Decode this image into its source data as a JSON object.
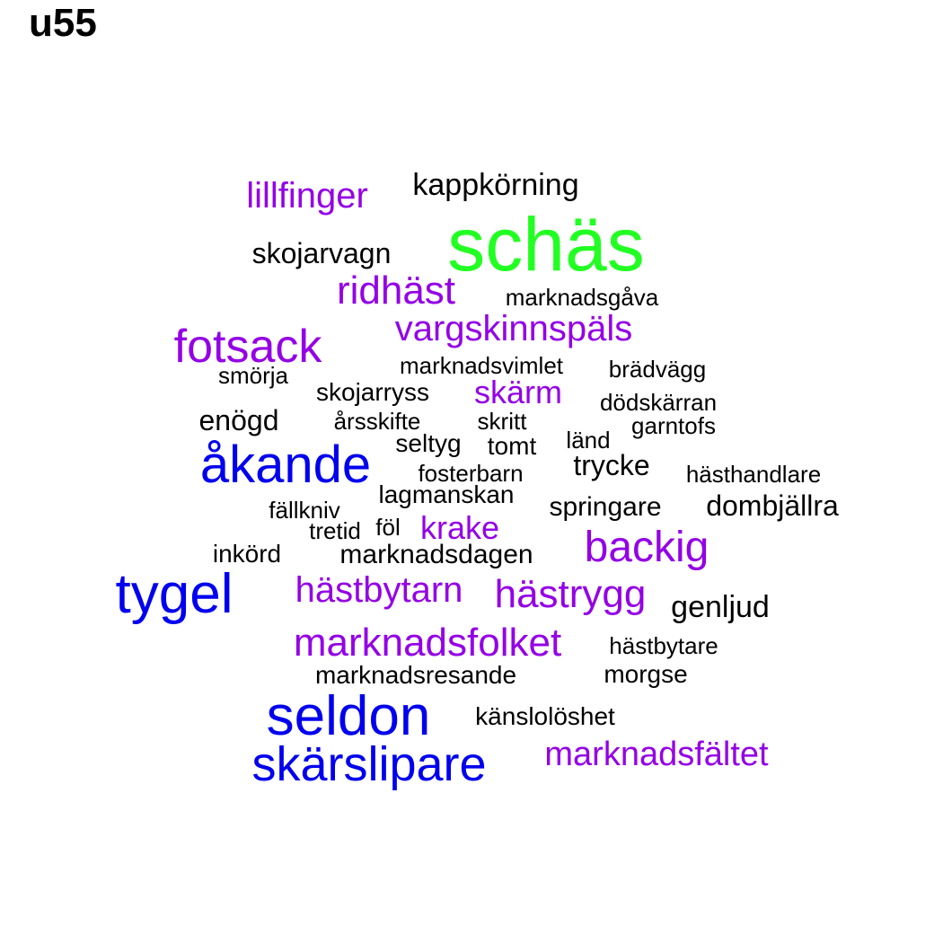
{
  "title": "u55",
  "colors": {
    "green": "#22ff22",
    "blue": "#0000ee",
    "purple": "#9400e6",
    "black": "#000000"
  },
  "words": [
    {
      "text": "schäs",
      "color": "green"
    },
    {
      "text": "kappkörning",
      "color": "black"
    },
    {
      "text": "lillfinger",
      "color": "purple"
    },
    {
      "text": "skojarvagn",
      "color": "black"
    },
    {
      "text": "ridhäst",
      "color": "purple"
    },
    {
      "text": "marknadsgåva",
      "color": "black"
    },
    {
      "text": "vargskinnspäls",
      "color": "purple"
    },
    {
      "text": "fotsack",
      "color": "purple"
    },
    {
      "text": "marknadsvimlet",
      "color": "black"
    },
    {
      "text": "brädvägg",
      "color": "black"
    },
    {
      "text": "smörja",
      "color": "black"
    },
    {
      "text": "skojarryss",
      "color": "black"
    },
    {
      "text": "skärm",
      "color": "purple"
    },
    {
      "text": "dödskärran",
      "color": "black"
    },
    {
      "text": "enögd",
      "color": "black"
    },
    {
      "text": "årsskifte",
      "color": "black"
    },
    {
      "text": "skritt",
      "color": "black"
    },
    {
      "text": "garntofs",
      "color": "black"
    },
    {
      "text": "länd",
      "color": "black"
    },
    {
      "text": "seltyg",
      "color": "black"
    },
    {
      "text": "tomt",
      "color": "black"
    },
    {
      "text": "åkande",
      "color": "blue"
    },
    {
      "text": "trycke",
      "color": "black"
    },
    {
      "text": "fosterbarn",
      "color": "black"
    },
    {
      "text": "hästhandlare",
      "color": "black"
    },
    {
      "text": "lagmanskan",
      "color": "black"
    },
    {
      "text": "dombjällra",
      "color": "black"
    },
    {
      "text": "fällkniv",
      "color": "black"
    },
    {
      "text": "springare",
      "color": "black"
    },
    {
      "text": "krake",
      "color": "purple"
    },
    {
      "text": "tretid",
      "color": "black"
    },
    {
      "text": "föl",
      "color": "black"
    },
    {
      "text": "inkörd",
      "color": "black"
    },
    {
      "text": "marknadsdagen",
      "color": "black"
    },
    {
      "text": "backig",
      "color": "purple"
    },
    {
      "text": "tygel",
      "color": "blue"
    },
    {
      "text": "hästbytarn",
      "color": "purple"
    },
    {
      "text": "hästrygg",
      "color": "purple"
    },
    {
      "text": "genljud",
      "color": "black"
    },
    {
      "text": "marknadsfolket",
      "color": "purple"
    },
    {
      "text": "hästbytare",
      "color": "black"
    },
    {
      "text": "marknadsresande",
      "color": "black"
    },
    {
      "text": "morgse",
      "color": "black"
    },
    {
      "text": "seldon",
      "color": "blue"
    },
    {
      "text": "känslolöshet",
      "color": "black"
    },
    {
      "text": "marknadsfältet",
      "color": "purple"
    },
    {
      "text": "skärslipare",
      "color": "blue"
    }
  ]
}
